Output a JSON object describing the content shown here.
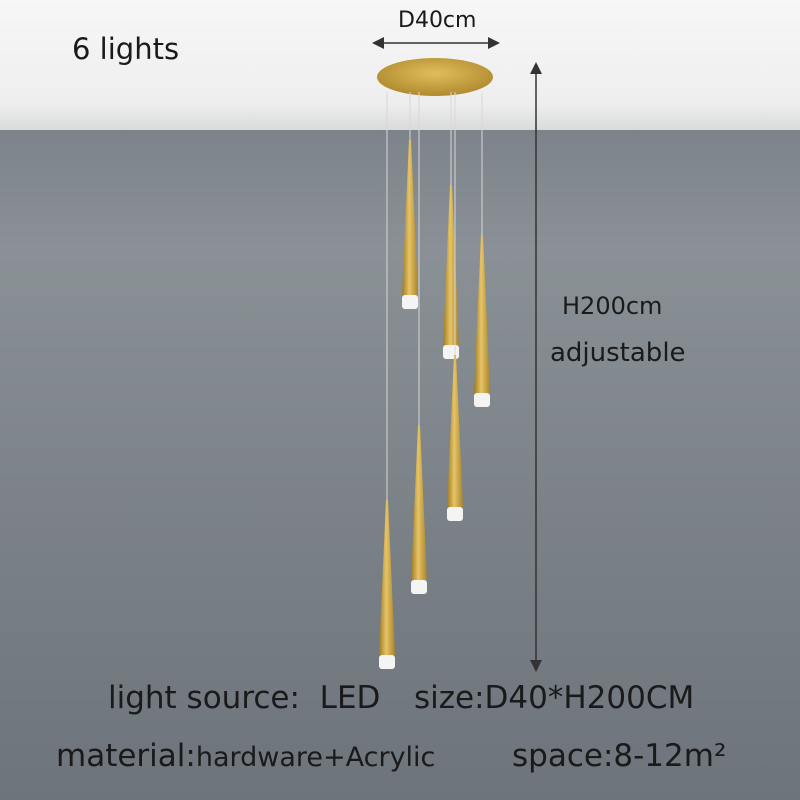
{
  "labels": {
    "count": "6 lights",
    "diameter": "D40cm",
    "height": "H200cm",
    "adjustable": "adjustable",
    "light_source_label": "light source:",
    "light_source_value": "LED",
    "size": "size:D40*H200CM",
    "material_label": "material:",
    "material_value": "hardware+Acrylic",
    "space": "space:8-12m²"
  },
  "colors": {
    "gold": "#c9a23e",
    "wall": "#7c838a",
    "ceiling": "#f2f2f2"
  }
}
